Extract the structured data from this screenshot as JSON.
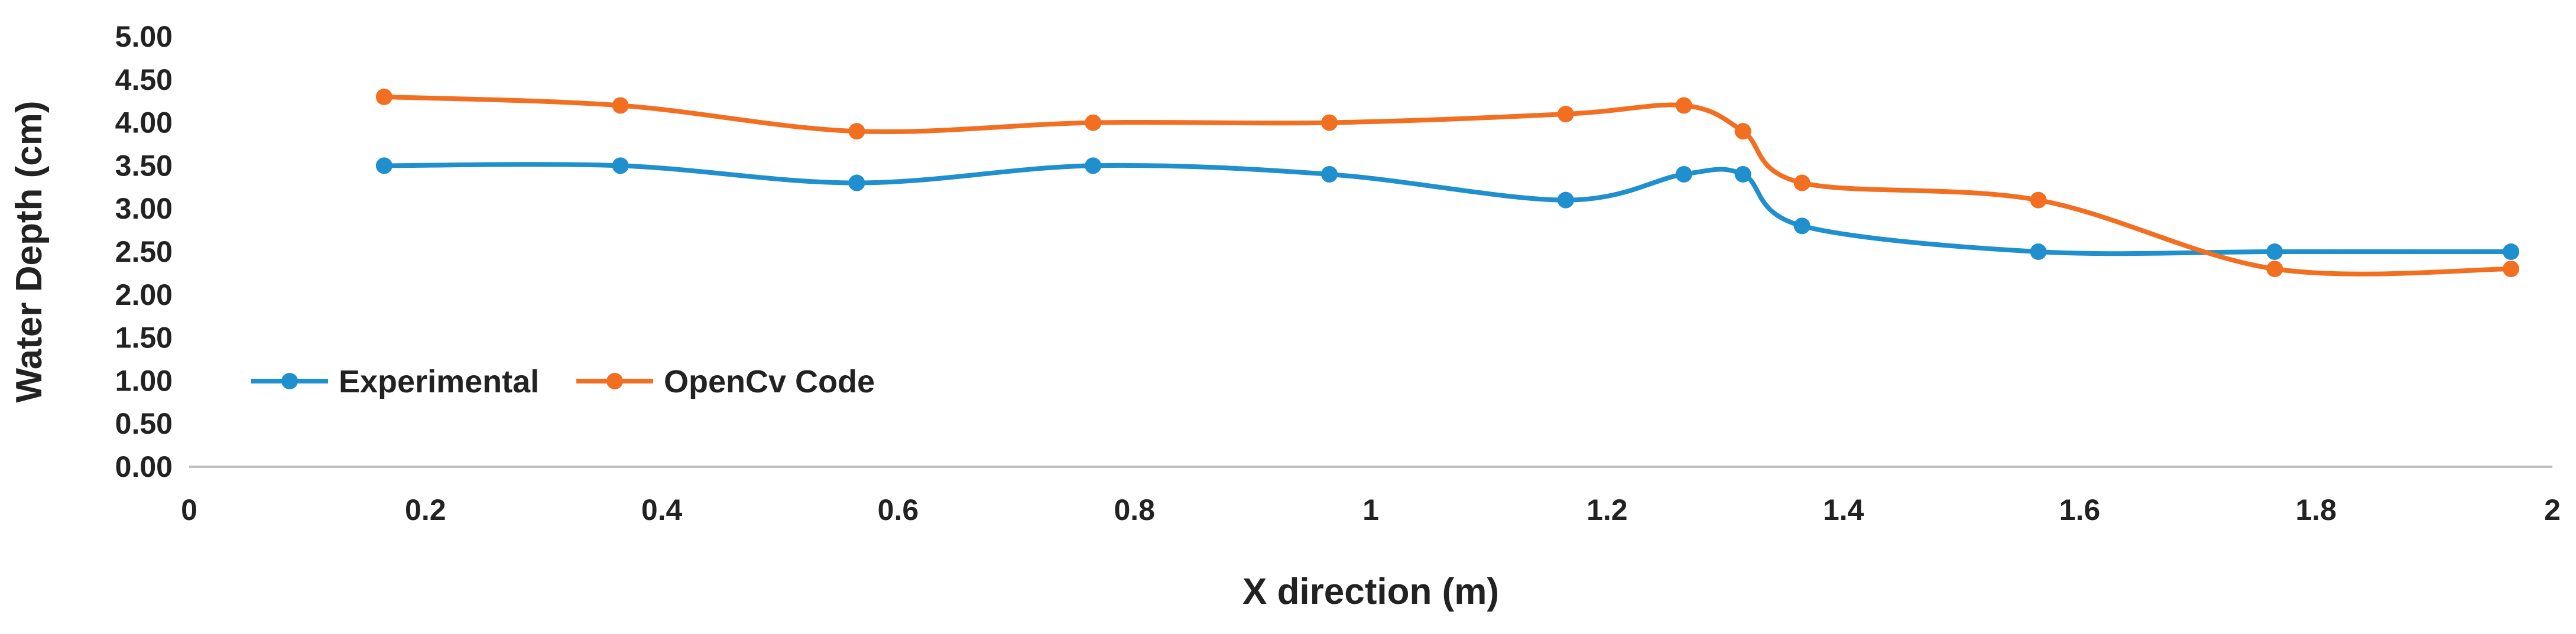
{
  "chart_data": {
    "type": "line",
    "title": "",
    "xlabel": "X direction (m)",
    "ylabel": "Water Depth (cm)",
    "xlim": [
      0,
      2
    ],
    "ylim": [
      0,
      5
    ],
    "x_ticks": [
      0,
      0.2,
      0.4,
      0.6,
      0.8,
      1,
      1.2,
      1.4,
      1.6,
      1.8,
      2
    ],
    "x_tick_labels": [
      "0",
      "0.2",
      "0.4",
      "0.6",
      "0.8",
      "1",
      "1.2",
      "1.4",
      "1.6",
      "1.8",
      "2"
    ],
    "y_ticks": [
      0,
      0.5,
      1,
      1.5,
      2,
      2.5,
      3,
      3.5,
      4,
      4.5,
      5
    ],
    "y_tick_labels": [
      "0.00",
      "0.50",
      "1.00",
      "1.50",
      "2.00",
      "2.50",
      "3.00",
      "3.50",
      "4.00",
      "4.50",
      "5.00"
    ],
    "grid": false,
    "smooth": true,
    "legend_position": "lower-left",
    "series": [
      {
        "name": "Experimental",
        "color": "#1f8fcd",
        "x": [
          0.165,
          0.365,
          0.565,
          0.765,
          0.965,
          1.165,
          1.265,
          1.315,
          1.365,
          1.565,
          1.765,
          1.965
        ],
        "y": [
          3.5,
          3.5,
          3.3,
          3.5,
          3.4,
          3.1,
          3.4,
          3.4,
          2.8,
          2.5,
          2.5,
          2.5
        ]
      },
      {
        "name": "OpenCv Code",
        "color": "#f26f21",
        "x": [
          0.165,
          0.365,
          0.565,
          0.765,
          0.965,
          1.165,
          1.265,
          1.315,
          1.365,
          1.565,
          1.765,
          1.965
        ],
        "y": [
          4.3,
          4.2,
          3.9,
          4.0,
          4.0,
          4.1,
          4.2,
          3.9,
          3.3,
          3.1,
          2.3,
          2.3
        ]
      }
    ]
  }
}
